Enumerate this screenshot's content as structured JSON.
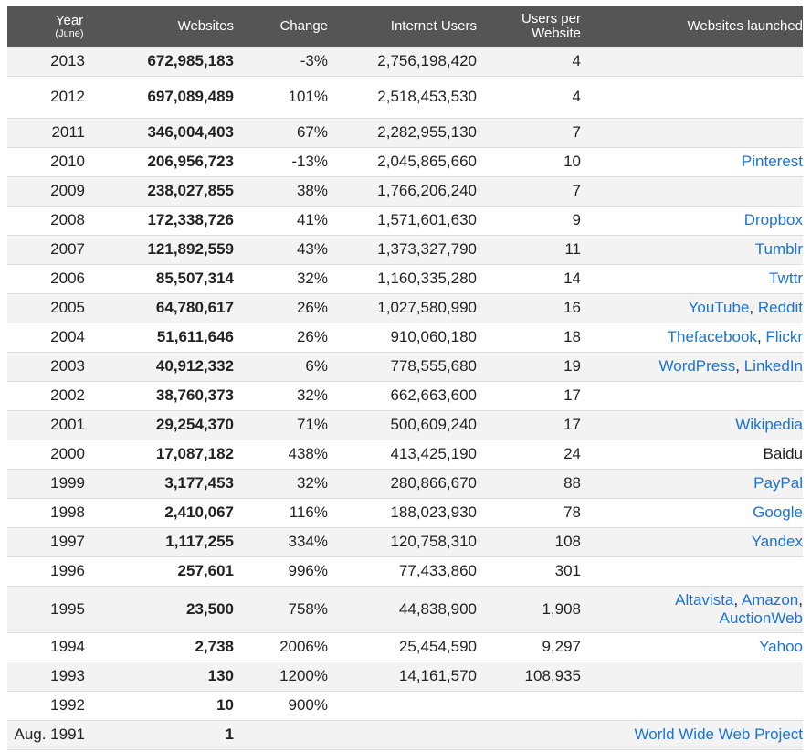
{
  "headers": {
    "year": "Year",
    "year_sub": "(June)",
    "websites": "Websites",
    "change": "Change",
    "users": "Internet Users",
    "upw_line1": "Users per",
    "upw_line2": "Website",
    "launched": "Websites launched"
  },
  "rows": [
    {
      "year": "2013",
      "websites": "672,985,183",
      "change": "-3%",
      "users": "2,756,198,420",
      "upw": "4",
      "launched": []
    },
    {
      "year": "2012",
      "websites": "697,089,489",
      "change": "101%",
      "users": "2,518,453,530",
      "upw": "4",
      "launched": []
    },
    {
      "year": "2011",
      "websites": "346,004,403",
      "change": "67%",
      "users": "2,282,955,130",
      "upw": "7",
      "launched": []
    },
    {
      "year": "2010",
      "websites": "206,956,723",
      "change": "-13%",
      "users": "2,045,865,660",
      "upw": "10",
      "launched": [
        {
          "name": "Pinterest",
          "link": true
        }
      ]
    },
    {
      "year": "2009",
      "websites": "238,027,855",
      "change": "38%",
      "users": "1,766,206,240",
      "upw": "7",
      "launched": []
    },
    {
      "year": "2008",
      "websites": "172,338,726",
      "change": "41%",
      "users": "1,571,601,630",
      "upw": "9",
      "launched": [
        {
          "name": "Dropbox",
          "link": true
        }
      ]
    },
    {
      "year": "2007",
      "websites": "121,892,559",
      "change": "43%",
      "users": "1,373,327,790",
      "upw": "11",
      "launched": [
        {
          "name": "Tumblr",
          "link": true
        }
      ]
    },
    {
      "year": "2006",
      "websites": "85,507,314",
      "change": "32%",
      "users": "1,160,335,280",
      "upw": "14",
      "launched": [
        {
          "name": "Twttr",
          "link": true
        }
      ]
    },
    {
      "year": "2005",
      "websites": "64,780,617",
      "change": "26%",
      "users": "1,027,580,990",
      "upw": "16",
      "launched": [
        {
          "name": "YouTube",
          "link": true
        },
        {
          "name": "Reddit",
          "link": true
        }
      ]
    },
    {
      "year": "2004",
      "websites": "51,611,646",
      "change": "26%",
      "users": "910,060,180",
      "upw": "18",
      "launched": [
        {
          "name": "Thefacebook",
          "link": true
        },
        {
          "name": "Flickr",
          "link": true
        }
      ]
    },
    {
      "year": "2003",
      "websites": "40,912,332",
      "change": "6%",
      "users": "778,555,680",
      "upw": "19",
      "launched": [
        {
          "name": "WordPress",
          "link": true
        },
        {
          "name": "LinkedIn",
          "link": true
        }
      ]
    },
    {
      "year": "2002",
      "websites": "38,760,373",
      "change": "32%",
      "users": "662,663,600",
      "upw": "17",
      "launched": []
    },
    {
      "year": "2001",
      "websites": "29,254,370",
      "change": "71%",
      "users": "500,609,240",
      "upw": "17",
      "launched": [
        {
          "name": "Wikipedia",
          "link": true
        }
      ]
    },
    {
      "year": "2000",
      "websites": "17,087,182",
      "change": "438%",
      "users": "413,425,190",
      "upw": "24",
      "launched": [
        {
          "name": "Baidu",
          "link": false
        }
      ]
    },
    {
      "year": "1999",
      "websites": "3,177,453",
      "change": "32%",
      "users": "280,866,670",
      "upw": "88",
      "launched": [
        {
          "name": "PayPal",
          "link": true
        }
      ]
    },
    {
      "year": "1998",
      "websites": "2,410,067",
      "change": "116%",
      "users": "188,023,930",
      "upw": "78",
      "launched": [
        {
          "name": "Google",
          "link": true
        }
      ]
    },
    {
      "year": "1997",
      "websites": "1,117,255",
      "change": "334%",
      "users": "120,758,310",
      "upw": "108",
      "launched": [
        {
          "name": "Yandex",
          "link": true
        }
      ]
    },
    {
      "year": "1996",
      "websites": "257,601",
      "change": "996%",
      "users": "77,433,860",
      "upw": "301",
      "launched": []
    },
    {
      "year": "1995",
      "websites": "23,500",
      "change": "758%",
      "users": "44,838,900",
      "upw": "1,908",
      "launched": [
        {
          "name": "Altavista",
          "link": true
        },
        {
          "name": "Amazon",
          "link": true
        },
        {
          "name": "AuctionWeb",
          "link": true
        }
      ]
    },
    {
      "year": "1994",
      "websites": "2,738",
      "change": "2006%",
      "users": "25,454,590",
      "upw": "9,297",
      "launched": [
        {
          "name": "Yahoo",
          "link": true
        }
      ]
    },
    {
      "year": "1993",
      "websites": "130",
      "change": "1200%",
      "users": "14,161,570",
      "upw": "108,935",
      "launched": []
    },
    {
      "year": "1992",
      "websites": "10",
      "change": "900%",
      "users": "",
      "upw": "",
      "launched": []
    },
    {
      "year": "Aug. 1991",
      "websites": "1",
      "change": "",
      "users": "",
      "upw": "",
      "launched": [
        {
          "name": "World Wide Web Project",
          "link": true
        }
      ]
    }
  ]
}
